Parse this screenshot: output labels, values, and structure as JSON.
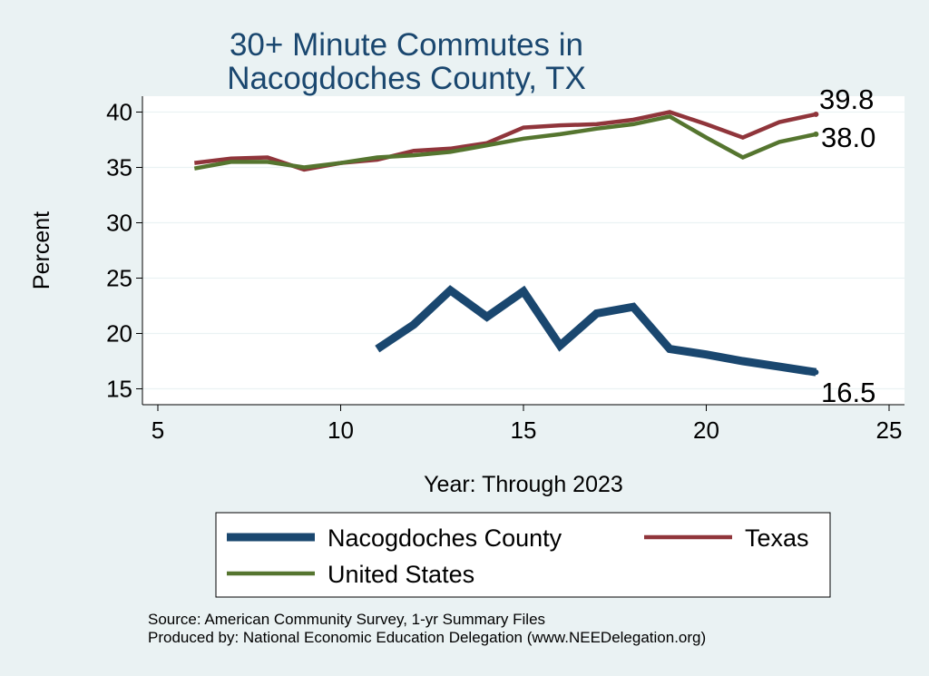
{
  "chart_data": {
    "type": "line",
    "title": [
      "30+ Minute Commutes in",
      "Nacogdoches County, TX"
    ],
    "xlabel": "Year: Through 2023",
    "ylabel": "Percent",
    "xlim": [
      5,
      25
    ],
    "ylim": [
      14,
      41
    ],
    "xticks": [
      5,
      10,
      15,
      20,
      25
    ],
    "yticks": [
      15,
      20,
      25,
      30,
      35,
      40
    ],
    "grid": true,
    "legend_position": "bottom",
    "series": [
      {
        "name": "Nacogdoches County",
        "color": "#1a476f",
        "x": [
          11,
          12,
          13,
          14,
          15,
          16,
          17,
          18,
          19,
          20,
          21,
          22,
          23
        ],
        "values": [
          18.6,
          20.8,
          23.9,
          21.5,
          23.8,
          18.9,
          21.8,
          22.4,
          18.6,
          18.1,
          17.5,
          17.0,
          16.5
        ],
        "end_label": "16.5"
      },
      {
        "name": "Texas",
        "color": "#90353b",
        "x": [
          6,
          7,
          8,
          9,
          10,
          11,
          12,
          13,
          14,
          15,
          16,
          17,
          18,
          19,
          20,
          21,
          22,
          23
        ],
        "values": [
          35.4,
          35.8,
          35.9,
          34.8,
          35.4,
          35.7,
          36.5,
          36.7,
          37.2,
          38.6,
          38.8,
          38.9,
          39.3,
          40.0,
          38.9,
          37.7,
          39.1,
          39.8
        ],
        "end_label": "39.8"
      },
      {
        "name": "United States",
        "color": "#55752f",
        "x": [
          6,
          7,
          8,
          9,
          10,
          11,
          12,
          13,
          14,
          15,
          16,
          17,
          18,
          19,
          20,
          21,
          22,
          23
        ],
        "values": [
          34.9,
          35.5,
          35.5,
          35.0,
          35.4,
          35.9,
          36.1,
          36.4,
          37.0,
          37.6,
          38.0,
          38.5,
          38.9,
          39.6,
          37.7,
          35.9,
          37.3,
          38.0
        ],
        "end_label": "38.0"
      }
    ]
  },
  "source": {
    "line1": "Source: American Community Survey, 1-yr Summary Files",
    "line2": "Produced by: National Economic Education Delegation (www.NEEDelegation.org)"
  }
}
